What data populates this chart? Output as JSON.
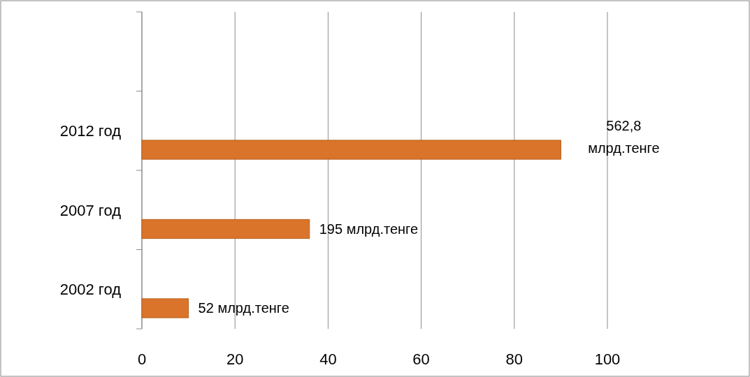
{
  "chart_data": {
    "type": "bar",
    "orientation": "horizontal",
    "categories": [
      null,
      "2012 год",
      "2007 год",
      "2002 год"
    ],
    "series": [
      {
        "color": "#d9742a",
        "values": [
          null,
          90,
          36,
          10
        ]
      }
    ],
    "annotations": [
      "562,8 млрд.тенге",
      "195 млрд.тенге",
      "52 млрд.тенге"
    ],
    "xlim": [
      0,
      100
    ],
    "xticks": [
      0,
      20,
      40,
      60,
      80,
      100
    ],
    "grid": "x"
  }
}
